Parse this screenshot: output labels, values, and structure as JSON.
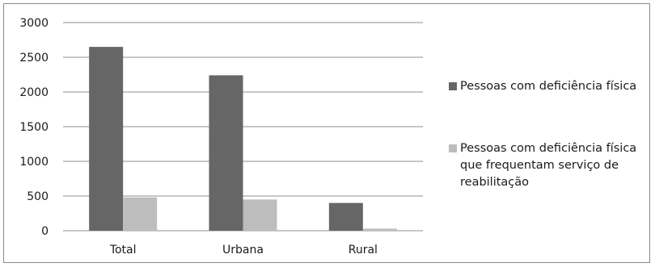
{
  "chart_data": {
    "type": "bar",
    "categories": [
      "Total",
      "Urbana",
      "Rural"
    ],
    "series": [
      {
        "name": "Pessoas com deficiência física",
        "values": [
          2650,
          2240,
          400
        ],
        "color": "#666666"
      },
      {
        "name": "Pessoas com deficiência física que frequentam serviço de reabilitação",
        "values": [
          480,
          450,
          30
        ],
        "color": "#bdbdbd"
      }
    ],
    "yticks": [
      "0",
      "500",
      "1000",
      "1500",
      "2000",
      "2500",
      "3000"
    ],
    "ylim": [
      0,
      3000
    ],
    "grid": true,
    "legend_position": "right",
    "legend_lines": [
      [
        "Pessoas com deficiência física"
      ],
      [
        "Pessoas com deficiência física",
        "que frequentam serviço de",
        "reabilitação"
      ]
    ]
  }
}
